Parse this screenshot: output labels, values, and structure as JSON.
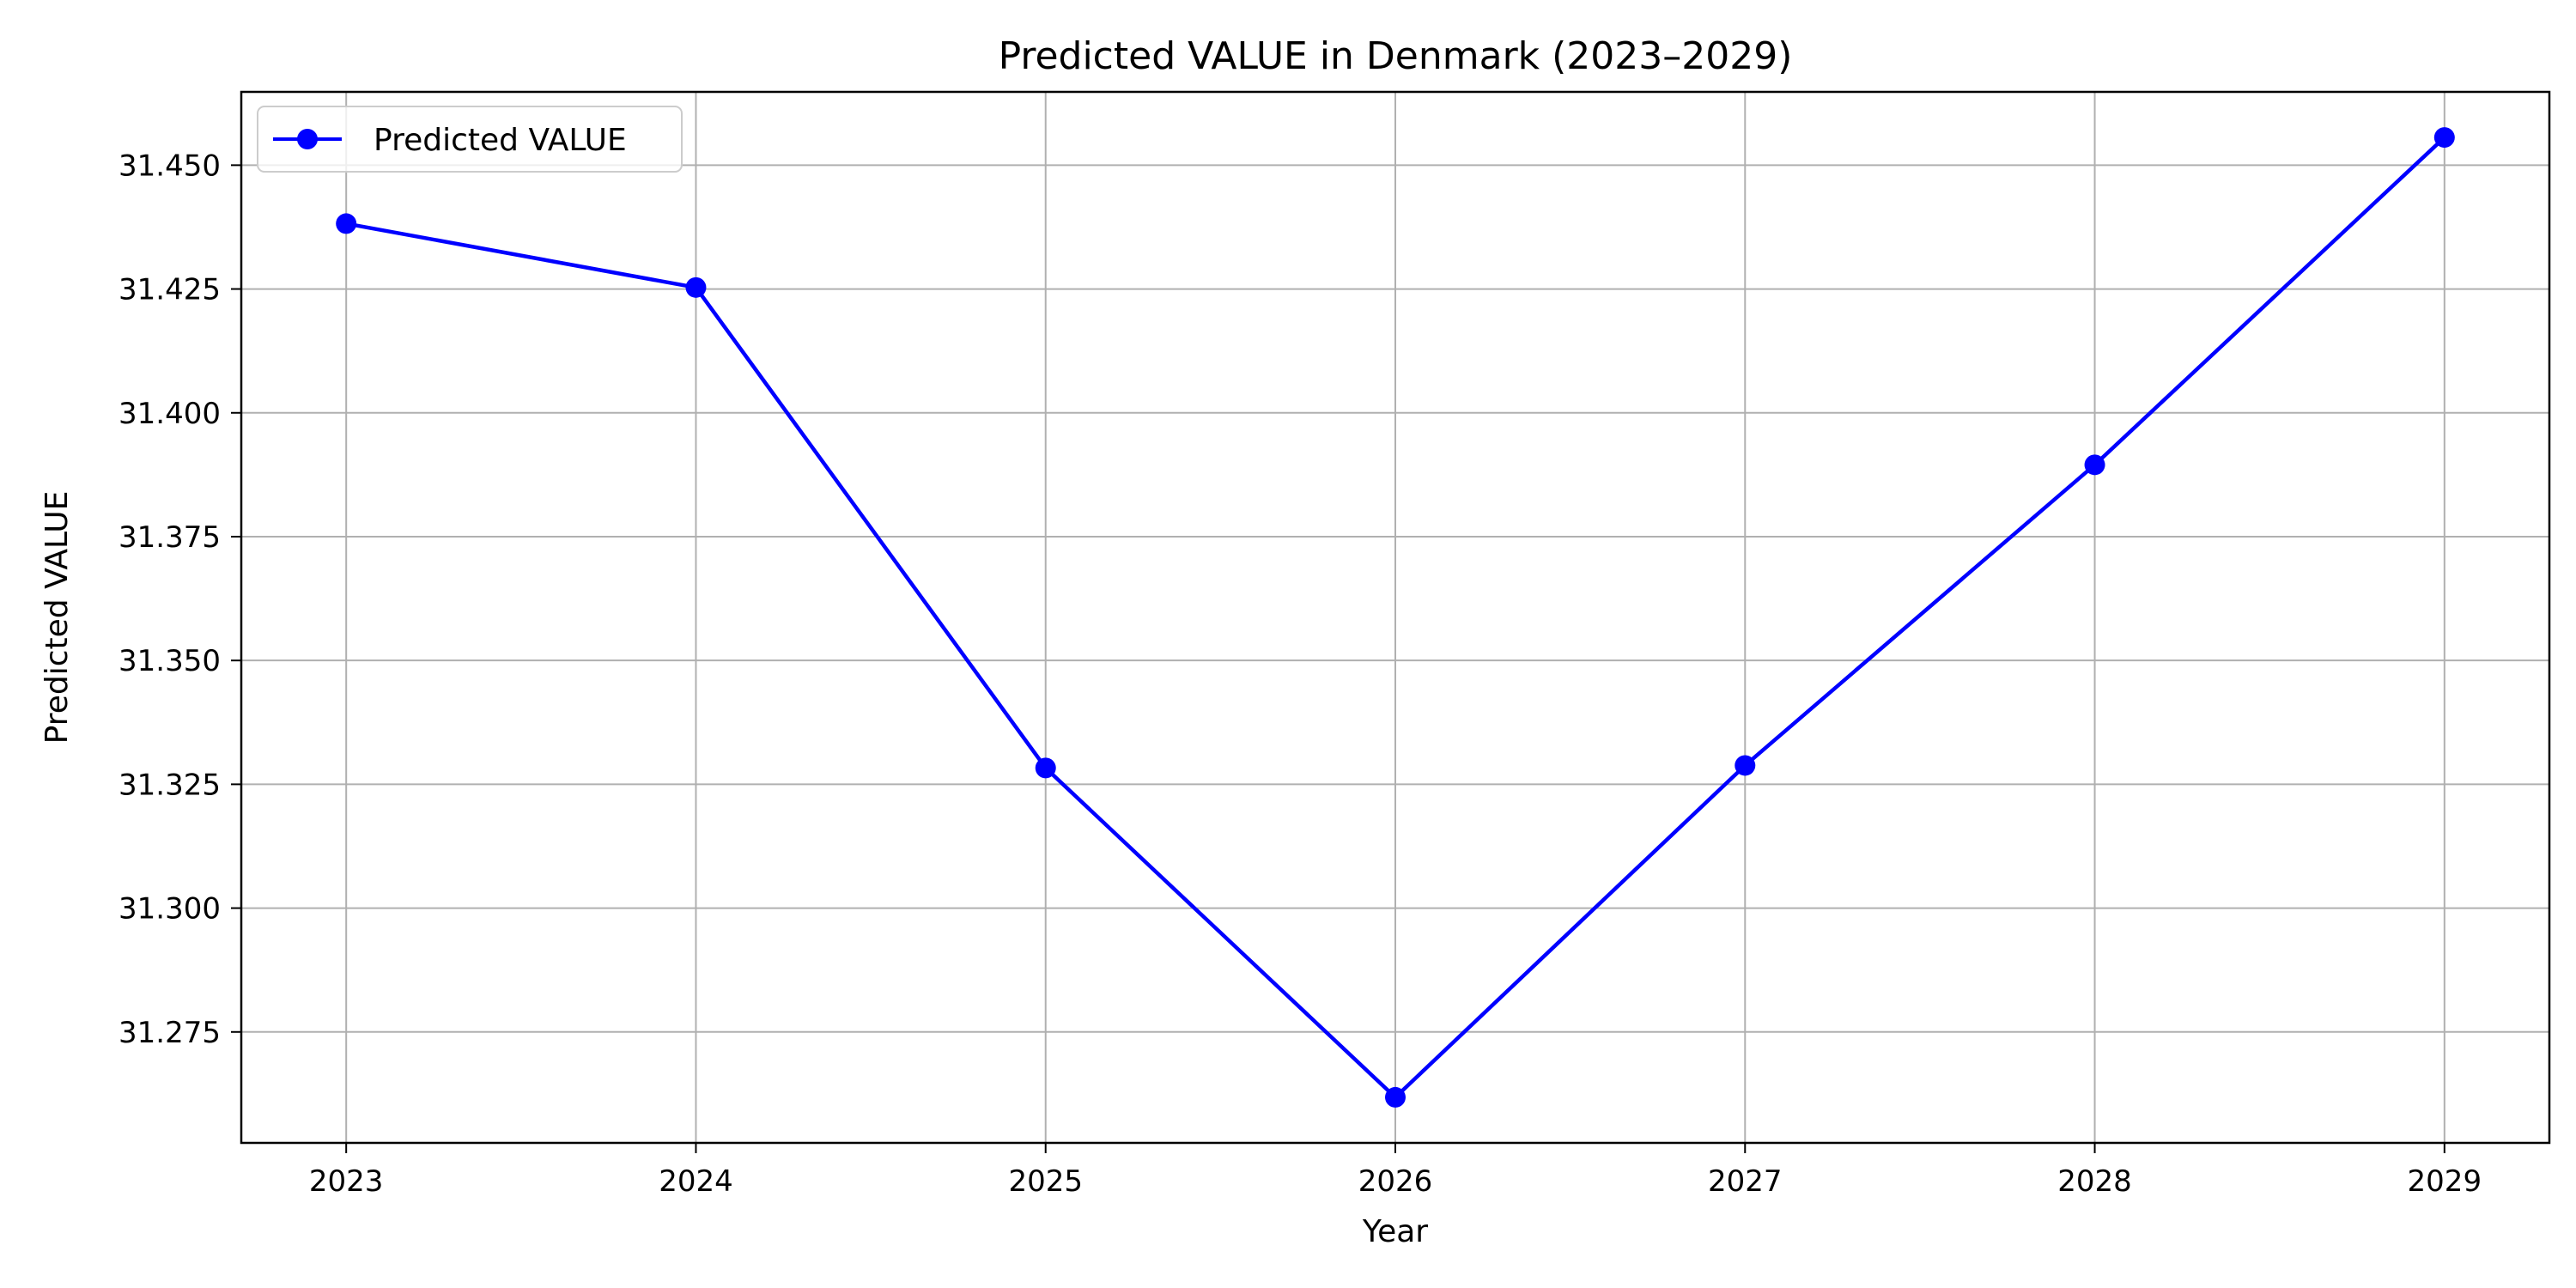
{
  "chart_data": {
    "type": "line",
    "title": "Predicted VALUE in Denmark (2023–2029)",
    "xlabel": "Year",
    "ylabel": "Predicted VALUE",
    "x": [
      "2023",
      "2024",
      "2025",
      "2026",
      "2027",
      "2028",
      "2029"
    ],
    "series": [
      {
        "name": "Predicted VALUE",
        "values": [
          31.4382,
          31.4253,
          31.3283,
          31.2618,
          31.3288,
          31.3895,
          31.4556
        ],
        "color": "#0000ff",
        "marker": "circle"
      }
    ],
    "xlim": [
      2022.7,
      2029.3
    ],
    "ylim": [
      31.2526,
      31.4648
    ],
    "yticks": [
      31.275,
      31.3,
      31.325,
      31.35,
      31.375,
      31.4,
      31.425,
      31.45
    ],
    "ytick_labels": [
      "31.275",
      "31.300",
      "31.325",
      "31.350",
      "31.375",
      "31.400",
      "31.425",
      "31.450"
    ],
    "grid": true,
    "legend_position": "top-left",
    "colors": {
      "grid": "#b0b0b0",
      "axes": "#000000",
      "background": "#ffffff"
    }
  }
}
